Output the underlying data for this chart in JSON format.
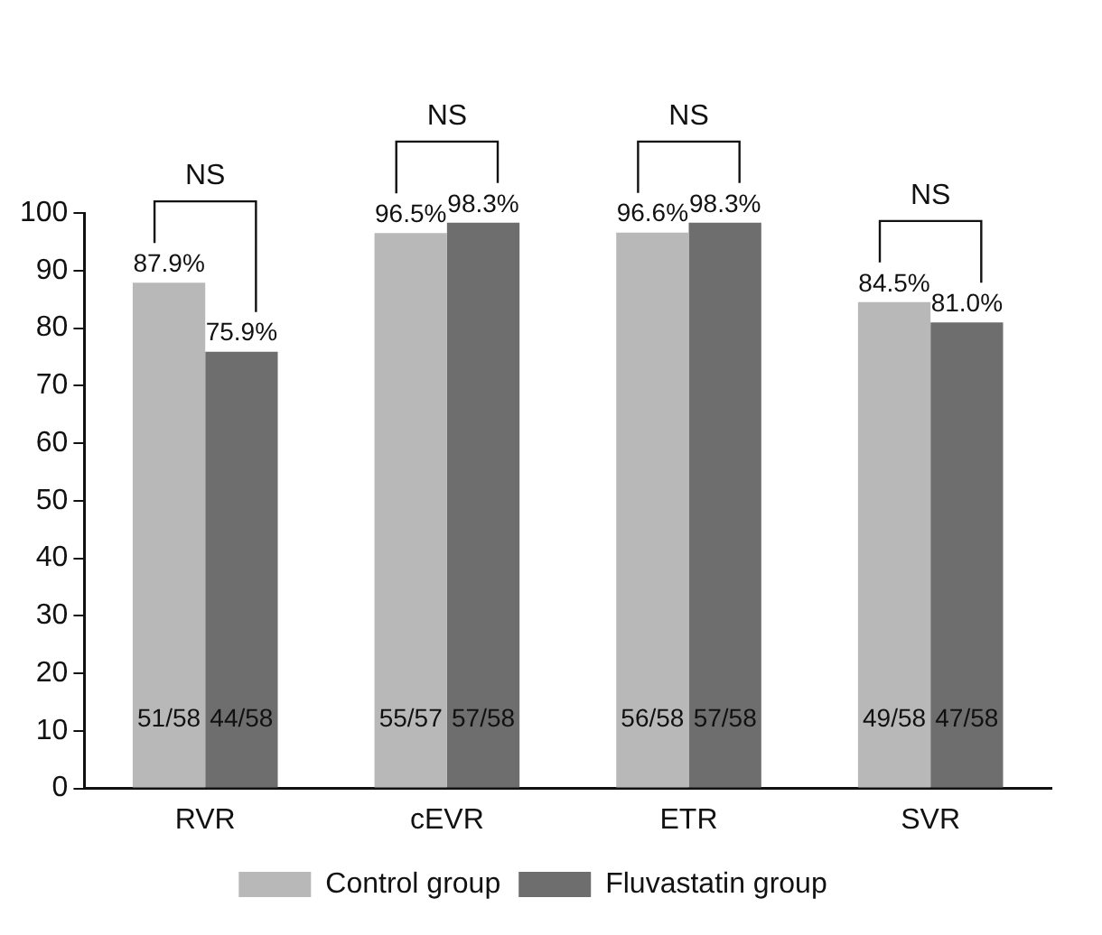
{
  "chart_data": {
    "type": "bar",
    "categories": [
      "RVR",
      "cEVR",
      "ETR",
      "SVR"
    ],
    "series": [
      {
        "name": "Control group",
        "color": "#b8b8b8",
        "values": [
          87.9,
          96.5,
          96.6,
          84.5
        ],
        "value_labels": [
          "87.9%",
          "96.5%",
          "96.6%",
          "84.5%"
        ]
      },
      {
        "name": "Fluvastatin group",
        "color": "#6e6e6e",
        "values": [
          75.9,
          98.3,
          98.3,
          81.0
        ],
        "value_labels": [
          "75.9%",
          "98.3%",
          "98.3%",
          "81.0%"
        ]
      }
    ],
    "ylim": [
      0,
      100
    ],
    "yticks": [
      0,
      10,
      20,
      30,
      40,
      50,
      60,
      70,
      80,
      90,
      100
    ],
    "grid": false,
    "legend": "bottom",
    "annotations": [
      "NS",
      "NS",
      "NS",
      "NS",
      {
        "text": "51/58",
        "x": "RVR",
        "y": 12
      },
      {
        "text": "44/58",
        "x": "RVR",
        "y": 12
      },
      {
        "text": "55/57",
        "x": "cEVR",
        "y": 12
      },
      {
        "text": "57/58",
        "x": "cEVR",
        "y": 12
      },
      {
        "text": "56/58",
        "x": "ETR",
        "y": 12
      },
      {
        "text": "57/58",
        "x": "ETR",
        "y": 12
      },
      {
        "text": "49/58",
        "x": "SVR",
        "y": 12
      },
      {
        "text": "47/58",
        "x": "SVR",
        "y": 12
      }
    ]
  }
}
